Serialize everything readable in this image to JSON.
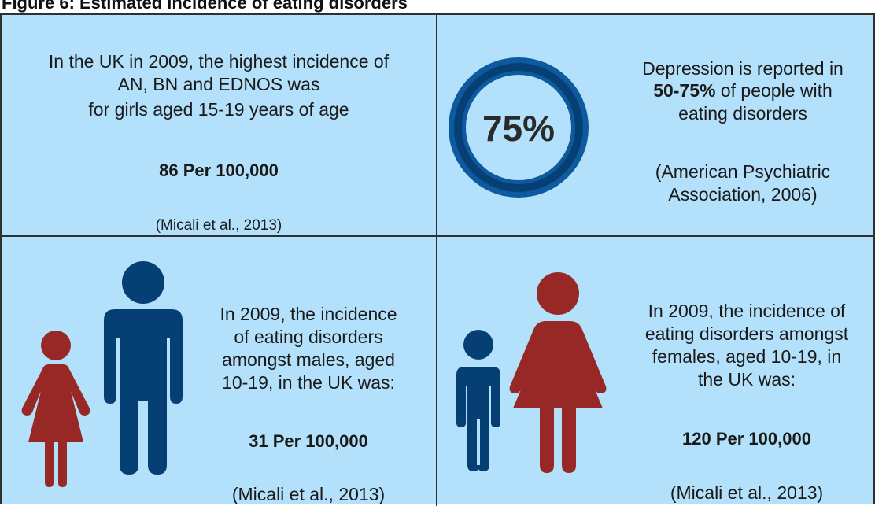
{
  "figure_title": "Figure 6: Estimated incidence of eating disorders",
  "colors": {
    "panel_bg": "#b3e0fa",
    "navy": "#063f73",
    "red": "#982826",
    "ring_outer": "#0d5a9e"
  },
  "panel_uk_peak": {
    "line1": "In the UK in 2009, the highest incidence of",
    "line2": "AN, BN and EDNOS was",
    "line3": "for girls aged 15-19 years of age",
    "stat": "86 Per 100,000",
    "citation": "(Micali et al., 2013)"
  },
  "panel_depression": {
    "ring_label": "75%",
    "ring_percent": 75,
    "line1": "Depression is reported in",
    "line2_bold": "50-75%",
    "line2_rest": " of people with",
    "line3": "eating disorders",
    "citation_line1": "(American Psychiatric",
    "citation_line2": "Association, 2006)"
  },
  "panel_males": {
    "icons": [
      "female-figure-icon",
      "male-figure-icon"
    ],
    "line1": "In 2009, the incidence",
    "line2": "of eating disorders",
    "line3": "amongst males, aged",
    "line4": "10-19, in the UK was:",
    "stat": "31 Per 100,000",
    "citation": "(Micali et al., 2013)"
  },
  "panel_females": {
    "icons": [
      "male-figure-icon",
      "female-figure-icon"
    ],
    "line1": "In 2009, the incidence of",
    "line2": "eating disorders amongst",
    "line3": "females, aged 10-19, in",
    "line4": "the UK was:",
    "stat": "120 Per 100,000",
    "citation": "(Micali et al., 2013)"
  }
}
